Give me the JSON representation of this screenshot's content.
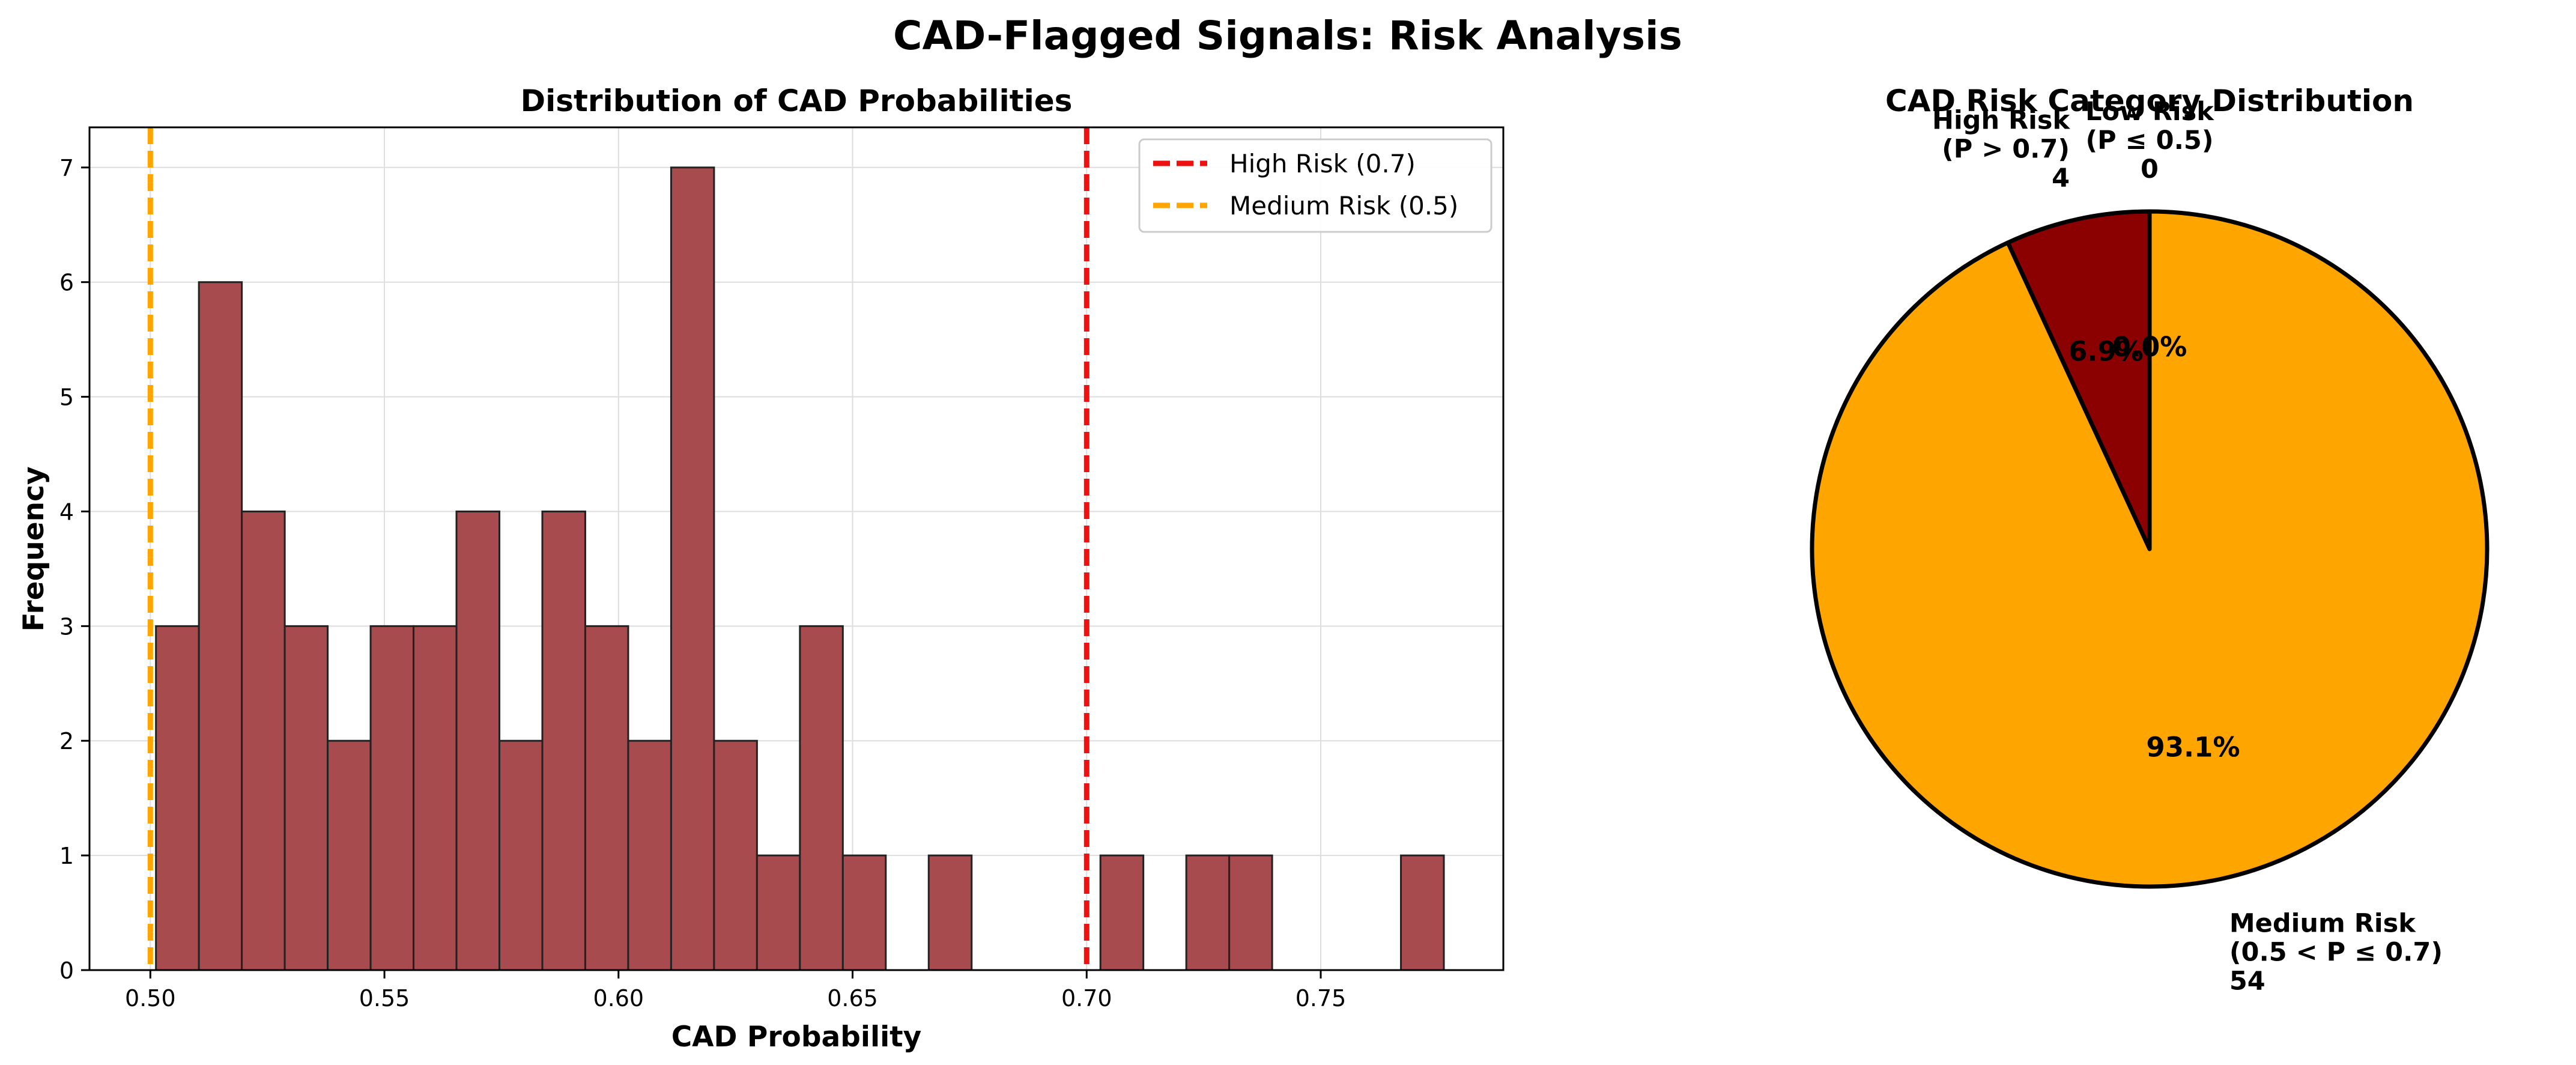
{
  "figure": {
    "suptitle": "CAD-Flagged Signals: Risk Analysis"
  },
  "chart_data": [
    {
      "type": "bar",
      "subtype": "histogram",
      "title": "Distribution of CAD Probabilities",
      "xlabel": "CAD Probability",
      "ylabel": "Frequency",
      "xlim": [
        0.487,
        0.789
      ],
      "ylim": [
        0,
        7.35
      ],
      "bin_width": 0.00917,
      "bin_start": 0.5012,
      "values": [
        3,
        6,
        4,
        3,
        2,
        3,
        3,
        4,
        2,
        4,
        3,
        2,
        7,
        2,
        1,
        3,
        1,
        0,
        1,
        0,
        0,
        0,
        1,
        0,
        1,
        1,
        0,
        0,
        0,
        1
      ],
      "bar_color": "#a84b4f",
      "edge_color": "#222222",
      "grid": true,
      "xticks": [
        0.5,
        0.55,
        0.6,
        0.65,
        0.7,
        0.75
      ],
      "xtick_labels": [
        "0.50",
        "0.55",
        "0.60",
        "0.65",
        "0.70",
        "0.75"
      ],
      "yticks": [
        0,
        1,
        2,
        3,
        4,
        5,
        6,
        7
      ],
      "ytick_labels": [
        "0",
        "1",
        "2",
        "3",
        "4",
        "5",
        "6",
        "7"
      ],
      "reference_lines": [
        {
          "x": 0.7,
          "label": "High Risk (0.7)",
          "color": "#ee1111"
        },
        {
          "x": 0.5,
          "label": "Medium Risk (0.5)",
          "color": "#ffa500"
        }
      ],
      "legend_position": "upper-right"
    },
    {
      "type": "pie",
      "title": "CAD Risk Category Distribution",
      "slices": [
        {
          "label": "High Risk\n(P > 0.7)\n4",
          "value": 4,
          "pct_label": "6.9%",
          "color": "#8b0000"
        },
        {
          "label": "Medium Risk\n(0.5 < P ≤ 0.7)\n54",
          "value": 54,
          "pct_label": "93.1%",
          "color": "#ffa500"
        },
        {
          "label": "Low Risk\n(P ≤ 0.5)\n0",
          "value": 0,
          "pct_label": "0.0%",
          "color": "#2e8b57"
        }
      ],
      "edge_color": "#000000"
    }
  ]
}
